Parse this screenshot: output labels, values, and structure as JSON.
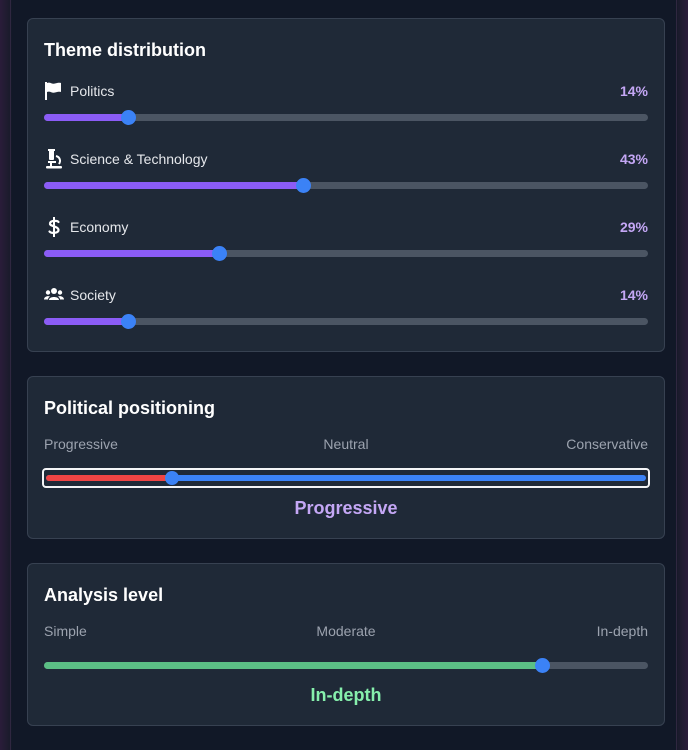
{
  "themes": {
    "title": "Theme distribution",
    "items": [
      {
        "label": "Politics",
        "pct_label": "14%",
        "value": 0.14,
        "icon": "flag-icon"
      },
      {
        "label": "Science & Technology",
        "pct_label": "43%",
        "value": 0.43,
        "icon": "microscope-icon"
      },
      {
        "label": "Economy",
        "pct_label": "29%",
        "value": 0.29,
        "icon": "dollar-icon"
      },
      {
        "label": "Society",
        "pct_label": "14%",
        "value": 0.14,
        "icon": "users-icon"
      }
    ]
  },
  "politics": {
    "title": "Political positioning",
    "scale": {
      "left": "Progressive",
      "middle": "Neutral",
      "right": "Conservative"
    },
    "value": 0.21,
    "result": "Progressive",
    "colors": {
      "left": "#ef4444",
      "right": "#3b82f6"
    }
  },
  "analysis": {
    "title": "Analysis level",
    "scale": {
      "left": "Simple",
      "middle": "Moderate",
      "right": "In-depth"
    },
    "value": 0.825,
    "result": "In-depth",
    "colors": {
      "fill": "#5bbf85"
    }
  },
  "colors": {
    "accent": "#8b5cf6",
    "thumb": "#3b82f6",
    "percent": "#c4a7f5"
  }
}
